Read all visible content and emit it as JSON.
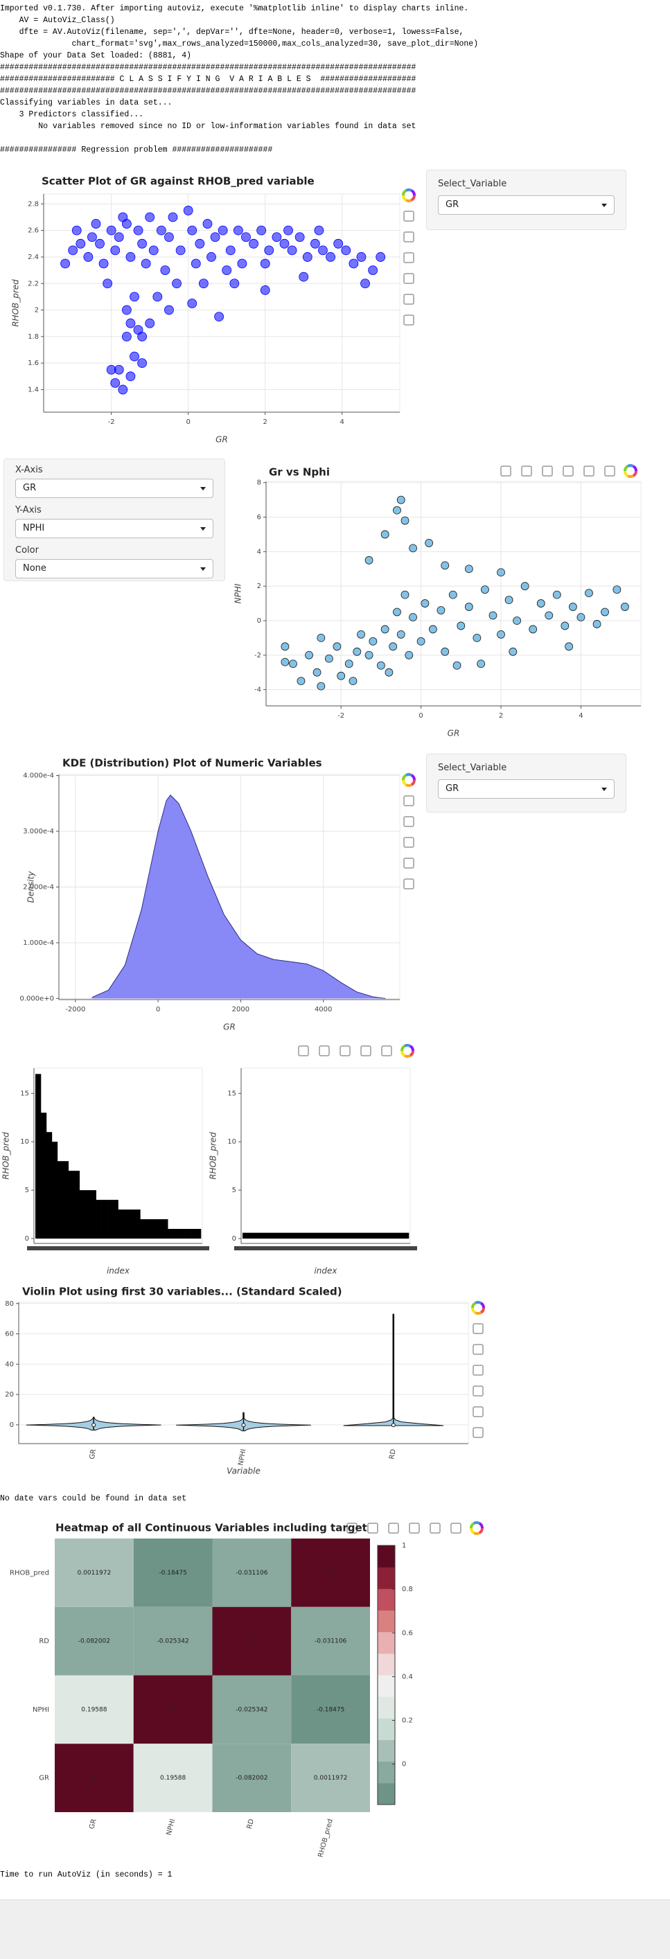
{
  "log": [
    "Imported v0.1.730. After importing autoviz, execute '%matplotlib inline' to display charts inline.",
    "    AV = AutoViz_Class()",
    "    dfte = AV.AutoViz(filename, sep=',', depVar='', dfte=None, header=0, verbose=1, lowess=False,",
    "               chart_format='svg',max_rows_analyzed=150000,max_cols_analyzed=30, save_plot_dir=None)",
    "Shape of your Data Set loaded: (8881, 4)",
    "#######################################################################################",
    "######################## C L A S S I F Y I N G  V A R I A B L E S  ####################",
    "#######################################################################################",
    "Classifying variables in data set...",
    "    3 Predictors classified...",
    "        No variables removed since no ID or low-information variables found in data set",
    "################ Regression problem #####################"
  ],
  "messages": {
    "no_date": "No date vars could be found in data set",
    "time": "Time to run AutoViz (in seconds) = 1"
  },
  "widgets": {
    "scatter_select": {
      "label": "Select_Variable",
      "value": "GR"
    },
    "axes_panel": [
      {
        "label": "X-Axis",
        "value": "GR"
      },
      {
        "label": "Y-Axis",
        "value": "NPHI"
      },
      {
        "label": "Color",
        "value": "None"
      }
    ],
    "kde_select": {
      "label": "Select_Variable",
      "value": "GR"
    }
  },
  "chart_data": [
    {
      "type": "scatter",
      "title": "Scatter Plot of GR against RHOB_pred variable",
      "xlabel": "GR",
      "ylabel": "RHOB_pred",
      "color": "#0000ff",
      "grid": true,
      "x": [
        -3.2,
        -3.0,
        -2.8,
        -2.6,
        -2.5,
        -2.3,
        -2.2,
        -2.0,
        -1.9,
        -1.8,
        -1.6,
        -1.5,
        -1.3,
        -1.2,
        -1.0,
        -0.9,
        -0.7,
        -0.5,
        -0.4,
        -0.2,
        0.0,
        0.1,
        0.3,
        0.5,
        0.7,
        0.9,
        1.1,
        1.3,
        1.5,
        1.7,
        1.9,
        2.1,
        2.3,
        2.5,
        2.7,
        2.9,
        3.1,
        3.3,
        3.5,
        3.7,
        3.9,
        4.1,
        4.3,
        4.5,
        4.8,
        5.0,
        -2.9,
        -2.4,
        -1.7,
        -1.1,
        -0.6,
        0.2,
        0.6,
        1.0,
        1.4,
        2.0,
        2.6,
        3.4,
        -0.3,
        0.4,
        1.2,
        -2.1,
        -1.4,
        -1.6,
        -1.5,
        -1.3,
        -1.2,
        -1.6,
        -1.4,
        -1.2,
        -1.8,
        -1.5,
        -1.9,
        -1.7,
        -2.0,
        -0.8,
        -0.5,
        0.1,
        0.8,
        -1.0,
        2.0,
        3.0,
        4.6
      ],
      "y": [
        2.35,
        2.45,
        2.5,
        2.4,
        2.55,
        2.5,
        2.35,
        2.6,
        2.45,
        2.55,
        2.65,
        2.4,
        2.6,
        2.5,
        2.7,
        2.45,
        2.6,
        2.55,
        2.7,
        2.45,
        2.75,
        2.6,
        2.5,
        2.65,
        2.55,
        2.6,
        2.45,
        2.6,
        2.55,
        2.5,
        2.6,
        2.45,
        2.55,
        2.5,
        2.45,
        2.55,
        2.4,
        2.5,
        2.45,
        2.4,
        2.5,
        2.45,
        2.35,
        2.4,
        2.3,
        2.4,
        2.6,
        2.65,
        2.7,
        2.35,
        2.3,
        2.35,
        2.4,
        2.3,
        2.35,
        2.35,
        2.6,
        2.6,
        2.2,
        2.2,
        2.2,
        2.2,
        2.1,
        2.0,
        1.9,
        1.85,
        1.8,
        1.8,
        1.65,
        1.6,
        1.55,
        1.5,
        1.45,
        1.4,
        1.55,
        2.1,
        2.0,
        2.05,
        1.95,
        1.9,
        2.15,
        2.25,
        2.2
      ],
      "xlim": [
        -3.76,
        5.5
      ],
      "ylim": [
        1.23,
        2.875
      ],
      "xticks": [
        -2,
        0,
        2,
        4
      ],
      "yticks": [
        1.4,
        1.6,
        1.8,
        2,
        2.2,
        2.4,
        2.6,
        2.8
      ]
    },
    {
      "type": "scatter",
      "title": "Gr vs Nphi",
      "xlabel": "GR",
      "ylabel": "NPHI",
      "color": "#5aaedf",
      "grid": true,
      "x": [
        -3.4,
        -3.2,
        -3.0,
        -2.8,
        -2.6,
        -2.5,
        -2.3,
        -2.1,
        -2.0,
        -1.8,
        -1.6,
        -1.5,
        -1.3,
        -1.2,
        -1.0,
        -0.9,
        -0.7,
        -0.6,
        -0.5,
        -0.4,
        -0.3,
        -0.2,
        0.0,
        0.1,
        0.3,
        0.5,
        0.6,
        0.8,
        1.0,
        1.2,
        1.4,
        1.6,
        1.8,
        2.0,
        2.2,
        2.4,
        2.6,
        2.8,
        3.0,
        3.2,
        3.4,
        3.6,
        3.8,
        4.0,
        4.2,
        4.4,
        4.6,
        4.9,
        5.1,
        -0.5,
        -0.6,
        -0.4,
        -0.9,
        -0.2,
        0.2,
        -1.3,
        0.6,
        1.2,
        2.0,
        -2.5,
        -3.4,
        1.5,
        2.3,
        3.7,
        -1.7,
        -0.8,
        0.9
      ],
      "y": [
        -1.5,
        -2.5,
        -3.5,
        -2.0,
        -3.0,
        -1.0,
        -2.2,
        -1.5,
        -3.2,
        -2.5,
        -1.8,
        -0.8,
        -2.0,
        -1.2,
        -2.6,
        -0.5,
        -1.5,
        0.5,
        -0.8,
        1.5,
        -2.0,
        0.2,
        -1.2,
        1.0,
        -0.5,
        0.6,
        -1.8,
        1.5,
        -0.3,
        0.8,
        -1.0,
        1.8,
        0.3,
        -0.8,
        1.2,
        0.0,
        2.0,
        -0.5,
        1.0,
        0.3,
        1.5,
        -0.3,
        0.8,
        0.2,
        1.6,
        -0.2,
        0.5,
        1.8,
        0.8,
        7.0,
        6.4,
        5.8,
        5.0,
        4.2,
        4.5,
        3.5,
        3.2,
        3.0,
        2.8,
        -3.8,
        -2.4,
        -2.5,
        -1.8,
        -1.5,
        -3.5,
        -3.0,
        -2.6
      ],
      "xlim": [
        -3.875,
        5.5
      ],
      "ylim": [
        -4.94,
        8.07
      ],
      "xticks": [
        -2,
        0,
        2,
        4
      ],
      "yticks": [
        -4,
        -2,
        0,
        2,
        4,
        6,
        8
      ]
    },
    {
      "type": "area",
      "title": "KDE (Distribution) Plot of Numeric Variables",
      "xlabel": "GR",
      "ylabel": "Density",
      "color": "#7b7bf5",
      "grid": true,
      "x": [
        -1600,
        -1200,
        -800,
        -400,
        0,
        200,
        300,
        500,
        800,
        1200,
        1600,
        2000,
        2400,
        2800,
        3200,
        3600,
        4000,
        4400,
        4800,
        5200,
        5500
      ],
      "values": [
        2e-06,
        1.5e-05,
        6e-05,
        0.00016,
        0.0003,
        0.000355,
        0.000365,
        0.00035,
        0.0003,
        0.00022,
        0.00015,
        0.000105,
        8e-05,
        7e-05,
        6.6e-05,
        6.2e-05,
        5e-05,
        3e-05,
        1.2e-05,
        3e-06,
        0
      ],
      "xlim": [
        -2400,
        5850
      ],
      "ylim": [
        -2e-06,
        0.000402
      ],
      "xticks": [
        -2000,
        0,
        2000,
        4000
      ],
      "yticks": [
        {
          "value": 0,
          "label": "0.000e+0"
        },
        {
          "value": 0.0001,
          "label": "1.000e-4"
        },
        {
          "value": 0.0002,
          "label": "2.000e-4"
        },
        {
          "value": 0.0003,
          "label": "3.000e-4"
        },
        {
          "value": 0.0004,
          "label": "4.000e-4"
        }
      ]
    },
    {
      "type": "bar",
      "xlabel": "index",
      "ylabel": "RHOB_pred",
      "color": "#000000",
      "grid": false,
      "categories": [
        null,
        null,
        null,
        null,
        null,
        null,
        null,
        null,
        null,
        null,
        null,
        null,
        null,
        null,
        null,
        null,
        null,
        null,
        null,
        null,
        null,
        null,
        null,
        null,
        null,
        null,
        null,
        null,
        null,
        null
      ],
      "values": [
        17,
        13,
        11,
        10,
        8,
        8,
        7,
        7,
        5,
        5,
        5,
        4,
        4,
        4,
        4,
        3,
        3,
        3,
        3,
        2,
        2,
        2,
        2,
        2,
        1,
        1,
        1,
        1,
        1,
        1
      ],
      "ylim": [
        -0.5,
        17.6
      ],
      "yticks": [
        0,
        5,
        10,
        15
      ]
    },
    {
      "type": "bar",
      "xlabel": "index",
      "ylabel": "RHOB_pred",
      "color": "#000000",
      "grid": false,
      "categories": [
        null
      ],
      "values": [
        0.6
      ],
      "ylim": [
        -0.5,
        17.6
      ],
      "yticks": [
        0,
        5,
        10,
        15
      ]
    },
    {
      "type": "violin",
      "title": "Violin Plot using first 30 variables... (Standard Scaled)",
      "xlabel": "Variable",
      "color": "#a6cee3",
      "grid": true,
      "categories": [
        "GR",
        "NPHI",
        "RD"
      ],
      "min": [
        -3.5,
        -4,
        -0.5
      ],
      "median": [
        -0.1,
        -0.2,
        -0.2
      ],
      "max": [
        5,
        8,
        73
      ],
      "ylim": [
        -12.4,
        80.8
      ],
      "yticks": [
        0,
        20,
        40,
        60,
        80
      ]
    },
    {
      "type": "heatmap",
      "title": "Heatmap of all Continuous Variables including target",
      "xcategories": [
        "GR",
        "NPHI",
        "RD",
        "RHOB_pred"
      ],
      "ycategories": [
        "RHOB_pred",
        "RD",
        "NPHI",
        "GR"
      ],
      "values": [
        [
          0.0011972,
          -0.18475,
          -0.031106,
          1
        ],
        [
          -0.082002,
          -0.025342,
          1,
          -0.031106
        ],
        [
          0.19588,
          1,
          -0.025342,
          -0.18475
        ],
        [
          1,
          0.19588,
          -0.082002,
          0.0011972
        ]
      ],
      "palette": [
        "#6e9488",
        "#8aa99f",
        "#a8bfb8",
        "#c8dbd3",
        "#e0e8e4",
        "#efefef",
        "#f0d8d8",
        "#e8b0b0",
        "#d98080",
        "#c05060",
        "#8c2036",
        "#5c0a22"
      ],
      "clim": [
        -0.18475,
        1
      ],
      "cticks": [
        0,
        0.2,
        0.4,
        0.6,
        0.8,
        1
      ]
    }
  ]
}
